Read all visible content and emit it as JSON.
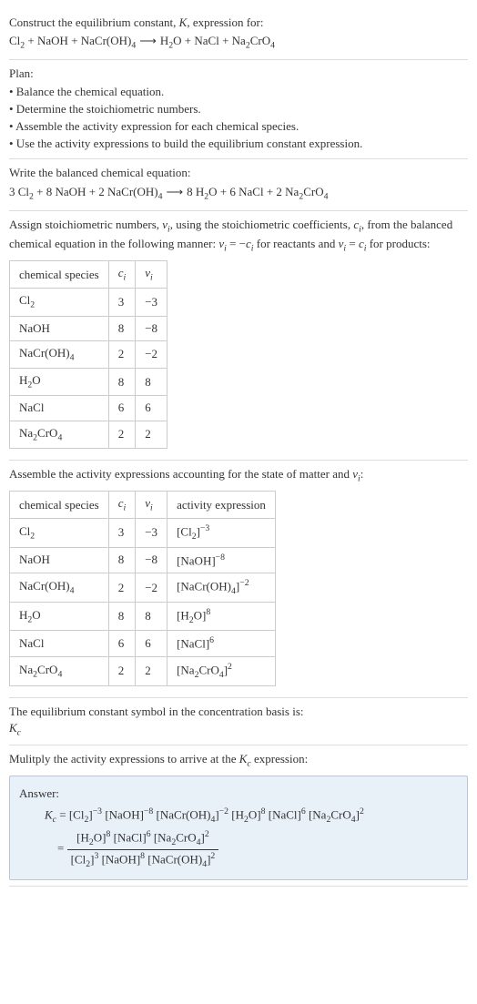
{
  "intro": {
    "line1_pre": "Construct the equilibrium constant, ",
    "K": "K",
    "line1_post": ", expression for:",
    "reaction_lhs_1": "Cl",
    "reaction_lhs_1_sub": "2",
    "reaction_lhs_2": " + NaOH + NaCr(OH)",
    "reaction_lhs_2_sub": "4",
    "arrow": " ⟶ ",
    "reaction_rhs_1": "H",
    "reaction_rhs_1_sub": "2",
    "reaction_rhs_2": "O + NaCl + Na",
    "reaction_rhs_2_sub": "2",
    "reaction_rhs_3": "CrO",
    "reaction_rhs_3_sub": "4"
  },
  "plan": {
    "title": "Plan:",
    "items": [
      "• Balance the chemical equation.",
      "• Determine the stoichiometric numbers.",
      "• Assemble the activity expression for each chemical species.",
      "• Use the activity expressions to build the equilibrium constant expression."
    ]
  },
  "balanced": {
    "title": "Write the balanced chemical equation:",
    "c1": "3 Cl",
    "c1s": "2",
    "c2": " + 8 NaOH + 2 NaCr(OH)",
    "c2s": "4",
    "arrow": " ⟶ ",
    "c3": "8 H",
    "c3s": "2",
    "c4": "O + 6 NaCl + 2 Na",
    "c4s": "2",
    "c5": "CrO",
    "c5s": "4"
  },
  "assign": {
    "p1a": "Assign stoichiometric numbers, ",
    "nu": "ν",
    "nu_sub": "i",
    "p1b": ", using the stoichiometric coefficients, ",
    "c": "c",
    "c_sub": "i",
    "p1c": ", from the balanced chemical equation in the following manner: ",
    "rel1a": "ν",
    "rel1a_sub": "i",
    "rel1b": " = −",
    "rel1c": "c",
    "rel1c_sub": "i",
    "p1d": " for reactants and ",
    "rel2a": "ν",
    "rel2a_sub": "i",
    "rel2b": " = ",
    "rel2c": "c",
    "rel2c_sub": "i",
    "p1e": " for products:"
  },
  "table1": {
    "h1": "chemical species",
    "h2": "c",
    "h2s": "i",
    "h3": "ν",
    "h3s": "i",
    "rows": [
      {
        "sp_a": "Cl",
        "sp_as": "2",
        "sp_b": "",
        "sp_bs": "",
        "c": "3",
        "n": "−3"
      },
      {
        "sp_a": "NaOH",
        "sp_as": "",
        "sp_b": "",
        "sp_bs": "",
        "c": "8",
        "n": "−8"
      },
      {
        "sp_a": "NaCr(OH)",
        "sp_as": "4",
        "sp_b": "",
        "sp_bs": "",
        "c": "2",
        "n": "−2"
      },
      {
        "sp_a": "H",
        "sp_as": "2",
        "sp_b": "O",
        "sp_bs": "",
        "c": "8",
        "n": "8"
      },
      {
        "sp_a": "NaCl",
        "sp_as": "",
        "sp_b": "",
        "sp_bs": "",
        "c": "6",
        "n": "6"
      },
      {
        "sp_a": "Na",
        "sp_as": "2",
        "sp_b": "CrO",
        "sp_bs": "4",
        "c": "2",
        "n": "2"
      }
    ]
  },
  "assemble": {
    "p1a": "Assemble the activity expressions accounting for the state of matter and ",
    "nu": "ν",
    "nu_sub": "i",
    "p1b": ":"
  },
  "table2": {
    "h1": "chemical species",
    "h2": "c",
    "h2s": "i",
    "h3": "ν",
    "h3s": "i",
    "h4": "activity expression",
    "rows": [
      {
        "sp_a": "Cl",
        "sp_as": "2",
        "sp_b": "",
        "sp_bs": "",
        "c": "3",
        "n": "−3",
        "ae_a": "[Cl",
        "ae_as": "2",
        "ae_b": "]",
        "ae_sup": "−3"
      },
      {
        "sp_a": "NaOH",
        "sp_as": "",
        "sp_b": "",
        "sp_bs": "",
        "c": "8",
        "n": "−8",
        "ae_a": "[NaOH",
        "ae_as": "",
        "ae_b": "]",
        "ae_sup": "−8"
      },
      {
        "sp_a": "NaCr(OH)",
        "sp_as": "4",
        "sp_b": "",
        "sp_bs": "",
        "c": "2",
        "n": "−2",
        "ae_a": "[NaCr(OH)",
        "ae_as": "4",
        "ae_b": "]",
        "ae_sup": "−2"
      },
      {
        "sp_a": "H",
        "sp_as": "2",
        "sp_b": "O",
        "sp_bs": "",
        "c": "8",
        "n": "8",
        "ae_a": "[H",
        "ae_as": "2",
        "ae_b": "O]",
        "ae_sup": "8"
      },
      {
        "sp_a": "NaCl",
        "sp_as": "",
        "sp_b": "",
        "sp_bs": "",
        "c": "6",
        "n": "6",
        "ae_a": "[NaCl",
        "ae_as": "",
        "ae_b": "]",
        "ae_sup": "6"
      },
      {
        "sp_a": "Na",
        "sp_as": "2",
        "sp_b": "CrO",
        "sp_bs": "4",
        "c": "2",
        "n": "2",
        "ae_a": "[Na",
        "ae_as": "2",
        "ae_b": "CrO",
        "ae_bs": "4",
        "ae_c": "]",
        "ae_sup": "2"
      }
    ]
  },
  "kc_text": {
    "p1": "The equilibrium constant symbol in the concentration basis is:",
    "kc": "K",
    "kc_sub": "c"
  },
  "mult": {
    "p1a": "Mulitply the activity expressions to arrive at the ",
    "kc": "K",
    "kc_sub": "c",
    "p1b": " expression:"
  },
  "answer": {
    "label": "Answer:",
    "kc": "K",
    "kc_sub": "c",
    "eq": " = ",
    "t1": "[Cl",
    "t1s": "2",
    "t1b": "]",
    "t1sup": "−3",
    "t2": " [NaOH]",
    "t2sup": "−8",
    "t3": " [NaCr(OH)",
    "t3s": "4",
    "t3b": "]",
    "t3sup": "−2",
    "t4": " [H",
    "t4s": "2",
    "t4b": "O]",
    "t4sup": "8",
    "t5": " [NaCl]",
    "t5sup": "6",
    "t6": " [Na",
    "t6s": "2",
    "t6b": "CrO",
    "t6bs": "4",
    "t6c": "]",
    "t6sup": "2",
    "eq2": " = ",
    "num1": "[H",
    "num1s": "2",
    "num1b": "O]",
    "num1sup": "8",
    "num2": " [NaCl]",
    "num2sup": "6",
    "num3": " [Na",
    "num3s": "2",
    "num3b": "CrO",
    "num3bs": "4",
    "num3c": "]",
    "num3sup": "2",
    "den1": "[Cl",
    "den1s": "2",
    "den1b": "]",
    "den1sup": "3",
    "den2": " [NaOH]",
    "den2sup": "8",
    "den3": " [NaCr(OH)",
    "den3s": "4",
    "den3b": "]",
    "den3sup": "2"
  },
  "style": {
    "answer_bg": "#e8f0f8",
    "answer_border": "#b8c8d8",
    "border_color": "#ddd",
    "table_border": "#ccc",
    "text_color": "#333",
    "font_size_base": 13
  }
}
